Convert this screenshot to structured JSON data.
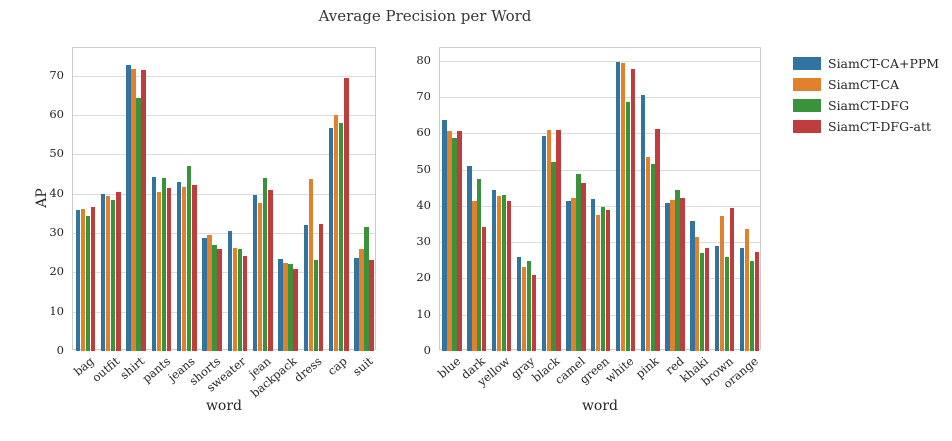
{
  "title": "Average Precision per Word",
  "legend": [
    {
      "label": "SiamCT-CA+PPM",
      "color": "#3274a1"
    },
    {
      "label": "SiamCT-CA",
      "color": "#e1812c"
    },
    {
      "label": "SiamCT-DFG",
      "color": "#3a923a"
    },
    {
      "label": "SiamCT-DFG-att",
      "color": "#c03d3e"
    }
  ],
  "chart_data": [
    {
      "type": "bar",
      "title": "",
      "xlabel": "word",
      "ylabel": "AP",
      "ylim": [
        0,
        77
      ],
      "yticks": [
        0,
        10,
        20,
        30,
        40,
        50,
        60,
        70
      ],
      "grid": true,
      "categories": [
        "bag",
        "outfit",
        "shirt",
        "pants",
        "jeans",
        "shorts",
        "sweater",
        "jean",
        "backpack",
        "dress",
        "cap",
        "suit"
      ],
      "series": [
        {
          "name": "SiamCT-CA+PPM",
          "color": "#3274a1",
          "values": [
            35.8,
            39.8,
            72.6,
            44.2,
            43.0,
            28.7,
            30.4,
            39.6,
            23.5,
            32.0,
            56.6,
            23.6
          ]
        },
        {
          "name": "SiamCT-CA",
          "color": "#e1812c",
          "values": [
            36.0,
            39.3,
            71.6,
            40.4,
            41.7,
            29.6,
            26.2,
            37.6,
            22.4,
            43.8,
            60.0,
            25.8
          ]
        },
        {
          "name": "SiamCT-DFG",
          "color": "#3a923a",
          "values": [
            34.2,
            38.4,
            64.4,
            44.0,
            47.0,
            27.0,
            25.8,
            44.0,
            22.2,
            23.2,
            58.0,
            31.5
          ]
        },
        {
          "name": "SiamCT-DFG-att",
          "color": "#c03d3e",
          "values": [
            36.5,
            40.5,
            71.3,
            41.3,
            42.3,
            26.0,
            24.1,
            41.0,
            20.8,
            32.4,
            69.3,
            23.2
          ]
        }
      ]
    },
    {
      "type": "bar",
      "title": "",
      "xlabel": "word",
      "ylabel": "",
      "ylim": [
        0,
        83.5
      ],
      "yticks": [
        0,
        10,
        20,
        30,
        40,
        50,
        60,
        70,
        80
      ],
      "grid": true,
      "categories": [
        "blue",
        "dark",
        "yellow",
        "gray",
        "black",
        "camel",
        "green",
        "white",
        "pink",
        "red",
        "khaki",
        "brown",
        "orange"
      ],
      "series": [
        {
          "name": "SiamCT-CA+PPM",
          "color": "#3274a1",
          "values": [
            63.7,
            51.0,
            44.3,
            25.8,
            59.3,
            41.3,
            41.8,
            79.6,
            70.5,
            40.8,
            35.8,
            28.8,
            28.5
          ]
        },
        {
          "name": "SiamCT-CA",
          "color": "#e1812c",
          "values": [
            60.6,
            41.2,
            42.7,
            23.2,
            60.8,
            42.3,
            37.5,
            79.3,
            53.4,
            41.5,
            31.5,
            37.3,
            33.5
          ]
        },
        {
          "name": "SiamCT-DFG",
          "color": "#3a923a",
          "values": [
            58.7,
            47.3,
            43.0,
            24.8,
            52.2,
            48.7,
            39.8,
            68.5,
            51.6,
            44.3,
            27.0,
            26.0,
            24.8
          ]
        },
        {
          "name": "SiamCT-DFG-att",
          "color": "#c03d3e",
          "values": [
            60.6,
            34.3,
            41.2,
            21.0,
            60.8,
            46.2,
            38.9,
            77.8,
            61.3,
            42.3,
            28.5,
            39.3,
            27.3
          ]
        }
      ]
    }
  ]
}
